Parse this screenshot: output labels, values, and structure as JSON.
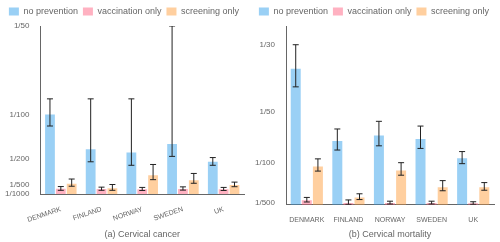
{
  "chart_data": [
    {
      "type": "bar",
      "xlabel": "(a) Cervical cancer",
      "categories": [
        "DENMARK",
        "FINLAND",
        "NORWAY",
        "SWEDEN",
        "UK"
      ],
      "series": [
        {
          "name": "no prevention",
          "values": [
            0.01,
            0.0060606061,
            0.0057142857,
            0.0066666667,
            0.0046511628
          ],
          "err_low": [
            0.0086956522,
            0.0046511628,
            0.0042553191,
            0.0052631579,
            0.0042553191
          ],
          "err_high": [
            0.0117647059,
            0.0117647059,
            0.0117647059,
            0.02,
            0.0051282051
          ]
        },
        {
          "name": "vaccination only",
          "values": [
            0.0016129032,
            0.0015625,
            0.0015384615,
            0.0015873016,
            0.0015384615
          ],
          "err_low": [
            0.0014285714,
            0.0014285714,
            0.0014084507,
            0.0014492754,
            0.0014084507
          ],
          "err_high": [
            0.0018518519,
            0.0017857143,
            0.001754386,
            0.0018181818,
            0.001754386
          ]
        },
        {
          "name": "screening only",
          "values": [
            0.002173913,
            0.0016666667,
            0.003125,
            0.0025641026,
            0.0020408163
          ],
          "err_low": [
            0.0018867925,
            0.0014285714,
            0.0026315789,
            0.0022222222,
            0.0018348624
          ],
          "err_high": [
            0.0027027027,
            0.0020833333,
            0.0043478261,
            0.0033333333,
            0.0023529412
          ]
        }
      ],
      "ylim": [
        0.001,
        0.02
      ],
      "yticks": [
        {
          "value": 0.001,
          "label": "1/1000"
        },
        {
          "value": 0.002,
          "label": "1/500"
        },
        {
          "value": 0.005,
          "label": "1/200"
        },
        {
          "value": 0.01,
          "label": "1/100"
        },
        {
          "value": 0.02,
          "label": "1/50"
        }
      ],
      "grid": false,
      "legend": "upper right"
    },
    {
      "type": "bar",
      "xlabel": "(b) Cervical mortality",
      "categories": [
        "DENMARK",
        "FINLAND",
        "NORWAY",
        "SWEDEN",
        "UK"
      ],
      "series": [
        {
          "name": "no prevention",
          "values": [
            0.0285714286,
            0.0142857143,
            0.0153846154,
            0.0147058824,
            0.0108695652
          ],
          "err_low": [
            0.025,
            0.0125,
            0.0133333333,
            0.0128205128,
            0.0098039216
          ],
          "err_high": [
            0.0333333333,
            0.0166666667,
            0.0181818182,
            0.0172413793,
            0.012195122
          ]
        },
        {
          "name": "vaccination only",
          "values": [
            0.0025641026,
            0.0020408163,
            0.0020408163,
            0.0020408163,
            0.0019607843
          ],
          "err_low": [
            0.0022222222,
            0.001754386,
            0.0018181818,
            0.0018181818,
            0.001754386
          ],
          "err_high": [
            0.003125,
            0.0026315789,
            0.002380952,
            0.002380952,
            0.0022727273
          ]
        },
        {
          "name": "screening only",
          "values": [
            0.0092592593,
            0.003125,
            0.0084745763,
            0.0051282051,
            0.0051282051
          ],
          "err_low": [
            0.0083333333,
            0.0027027027,
            0.007518797,
            0.0044444444,
            0.0045454545
          ],
          "err_high": [
            0.0107526882,
            0.0038461538,
            0.01,
            0.0064516129,
            0.0060606061
          ]
        }
      ],
      "ylim": [
        0.0016666667,
        0.037037037
      ],
      "yticks": [
        {
          "value": 0.002,
          "label": "1/500"
        },
        {
          "value": 0.01,
          "label": "1/100"
        },
        {
          "value": 0.02,
          "label": "1/50"
        },
        {
          "value": 0.0333333333,
          "label": "1/30"
        }
      ],
      "grid": false,
      "legend": "upper right"
    }
  ]
}
